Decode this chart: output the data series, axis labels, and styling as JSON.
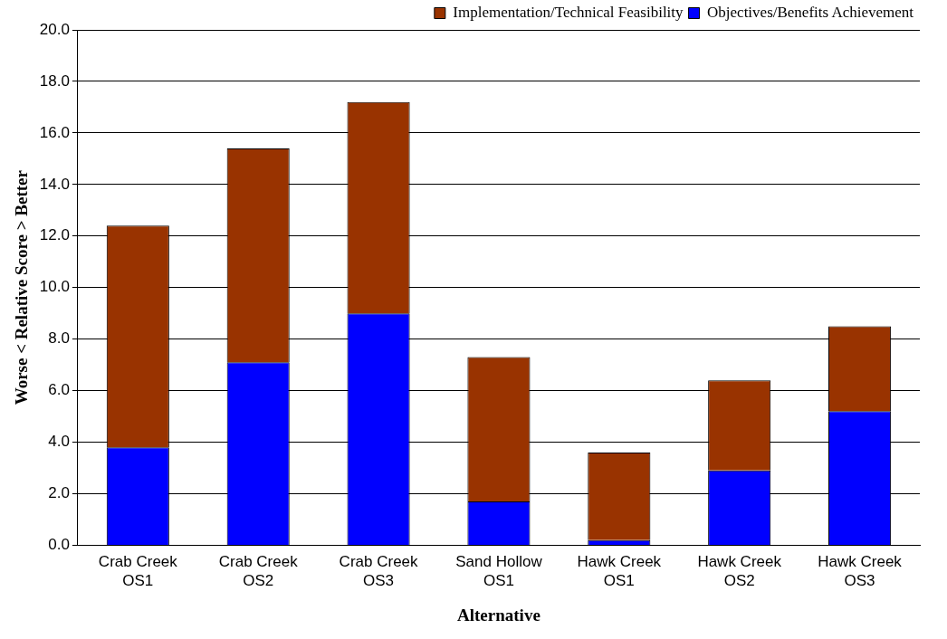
{
  "chart_data": {
    "type": "bar",
    "stacked": true,
    "xlabel": "Alternative",
    "ylabel": "Worse < Relative Score > Better",
    "categories": [
      "Crab Creek OS1",
      "Crab Creek OS2",
      "Crab Creek OS3",
      "Sand Hollow OS1",
      "Hawk Creek OS1",
      "Hawk Creek OS2",
      "Hawk Creek OS3"
    ],
    "series": [
      {
        "name": "Objectives/Benefits Achievement",
        "color": "#0000ff",
        "values": [
          3.8,
          7.1,
          9.0,
          1.7,
          0.2,
          2.9,
          5.2
        ]
      },
      {
        "name": "Implementation/Technical Feasibility",
        "color": "#993300",
        "values": [
          8.6,
          8.3,
          8.2,
          5.6,
          3.4,
          3.5,
          3.3
        ]
      }
    ],
    "ylim": [
      0,
      20
    ],
    "yticks": [
      {
        "value": 0,
        "label": "0.0"
      },
      {
        "value": 2,
        "label": "2.0"
      },
      {
        "value": 4,
        "label": "4.0"
      },
      {
        "value": 6,
        "label": "6.0"
      },
      {
        "value": 8,
        "label": "8.0"
      },
      {
        "value": 10,
        "label": "10.0"
      },
      {
        "value": 12,
        "label": "12.0"
      },
      {
        "value": 14,
        "label": "14.0"
      },
      {
        "value": 16,
        "label": "16.0"
      },
      {
        "value": 18,
        "label": "18.0"
      },
      {
        "value": 20,
        "label": "20.0"
      }
    ],
    "grid": "y",
    "legend": "top right"
  }
}
